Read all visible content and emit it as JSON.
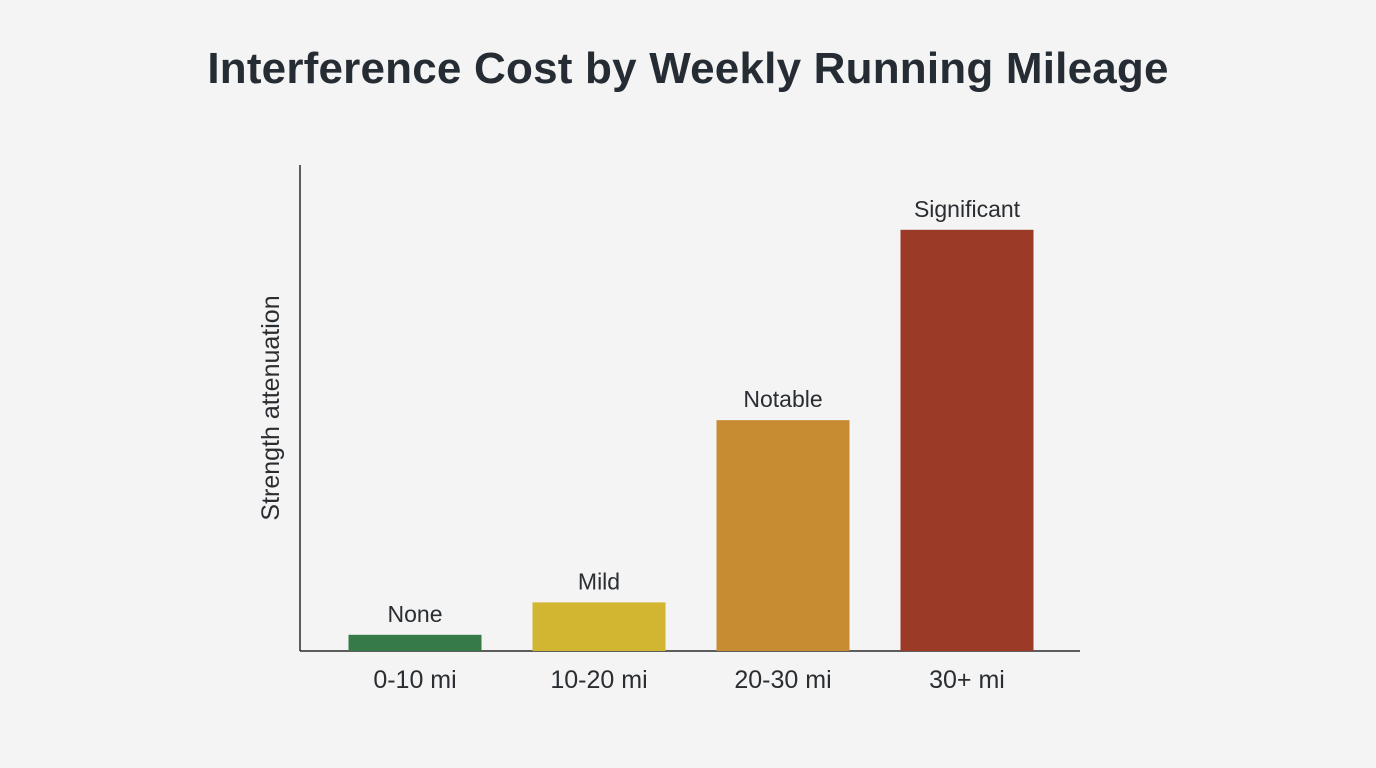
{
  "chart_data": {
    "type": "bar",
    "title": "Interference Cost by Weekly Running Mileage",
    "xlabel": "",
    "ylabel": "Strength attenuation",
    "categories": [
      "0-10 mi",
      "10-20 mi",
      "20-30 mi",
      "30+ mi"
    ],
    "values": [
      4,
      12,
      57,
      104
    ],
    "ylim": [
      0,
      120
    ],
    "bar_labels": [
      "None",
      "Mild",
      "Notable",
      "Significant"
    ],
    "colors": [
      "#367a48",
      "#d2b530",
      "#c78b32",
      "#9b3a27"
    ],
    "grid": false,
    "show_y_ticks": false,
    "legend": "none"
  }
}
